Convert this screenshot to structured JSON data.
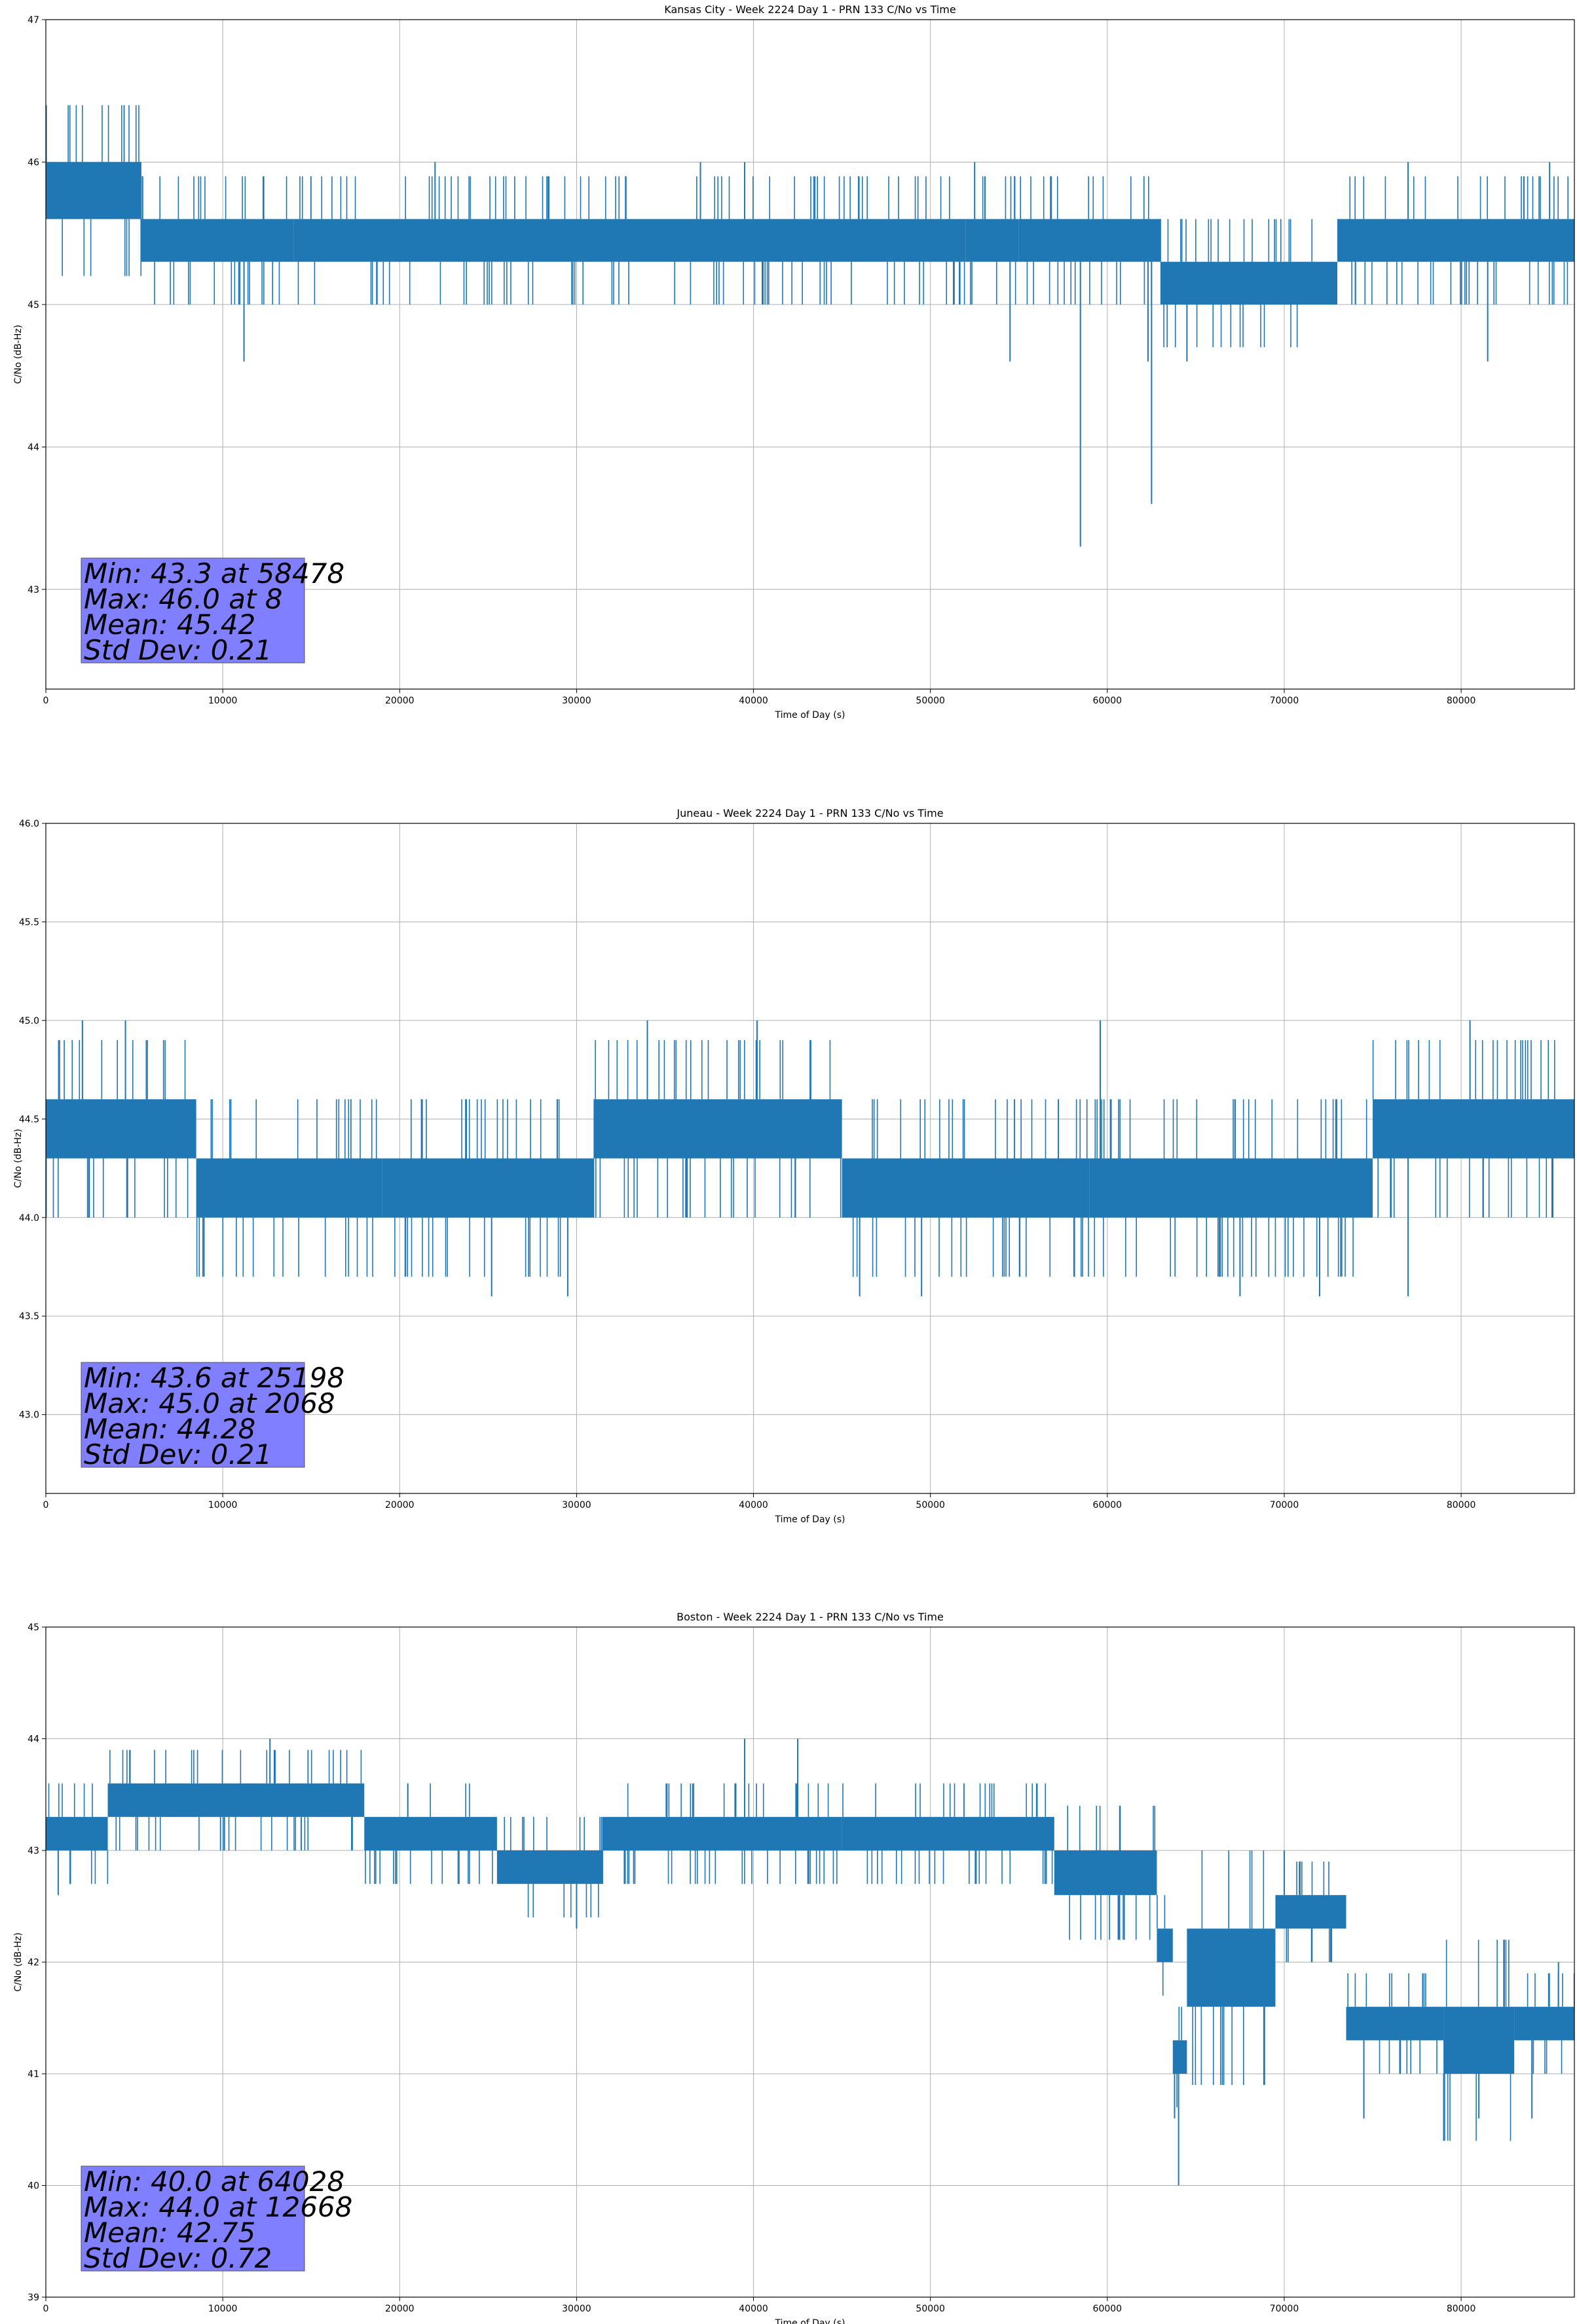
{
  "colors": {
    "series": "#1f77b4",
    "grid": "#b0b0b0",
    "stats_box": "#7f7fff"
  },
  "chart_data": [
    {
      "type": "line",
      "title": "Kansas City - Week 2224 Day 1 - PRN 133 C/No vs Time",
      "xlabel": "Time of Day (s)",
      "ylabel": "C/No (dB-Hz)",
      "xlim": [
        0,
        86400
      ],
      "ylim": [
        42.3,
        47
      ],
      "xticks": [
        0,
        10000,
        20000,
        30000,
        40000,
        50000,
        60000,
        70000,
        80000
      ],
      "yticks": [
        43,
        44,
        45,
        46,
        47
      ],
      "ytick_labels": [
        "43",
        "44",
        "45",
        "46",
        "47"
      ],
      "grid": true,
      "stats": [
        "Min: 43.3 at 58478",
        "Max: 46.0 at 8",
        "Mean: 45.42",
        "Std Dev: 0.21"
      ],
      "bands": [
        {
          "x": [
            0,
            5400
          ],
          "y": [
            45.6,
            46.0
          ]
        },
        {
          "x": [
            5400,
            14000
          ],
          "y": [
            45.3,
            45.6
          ]
        },
        {
          "x": [
            14000,
            52000
          ],
          "y": [
            45.3,
            45.6
          ]
        },
        {
          "x": [
            52000,
            55000
          ],
          "y": [
            45.3,
            45.6
          ]
        },
        {
          "x": [
            55000,
            63000
          ],
          "y": [
            45.3,
            45.6
          ]
        },
        {
          "x": [
            63000,
            73000
          ],
          "y": [
            45.0,
            45.3
          ]
        },
        {
          "x": [
            73000,
            86400
          ],
          "y": [
            45.3,
            45.6
          ]
        }
      ],
      "spikes": [
        {
          "x": 8,
          "y": 46.0
        },
        {
          "x": 11200,
          "y": 44.6
        },
        {
          "x": 22000,
          "y": 46.0
        },
        {
          "x": 37000,
          "y": 46.0
        },
        {
          "x": 39500,
          "y": 46.0
        },
        {
          "x": 52500,
          "y": 46.0
        },
        {
          "x": 54500,
          "y": 44.6
        },
        {
          "x": 58478,
          "y": 43.3
        },
        {
          "x": 62500,
          "y": 43.6
        },
        {
          "x": 62300,
          "y": 44.6
        },
        {
          "x": 64500,
          "y": 44.6
        },
        {
          "x": 77000,
          "y": 46.0
        },
        {
          "x": 81500,
          "y": 44.6
        },
        {
          "x": 85000,
          "y": 46.0
        }
      ]
    },
    {
      "type": "line",
      "title": "Juneau - Week 2224 Day 1 - PRN 133 C/No vs Time",
      "xlabel": "Time of Day (s)",
      "ylabel": "C/No (dB-Hz)",
      "xlim": [
        0,
        86400
      ],
      "ylim": [
        42.6,
        46
      ],
      "xticks": [
        0,
        10000,
        20000,
        30000,
        40000,
        50000,
        60000,
        70000,
        80000
      ],
      "yticks": [
        43.0,
        43.5,
        44.0,
        44.5,
        45.0,
        45.5,
        46.0
      ],
      "ytick_labels": [
        "43.0",
        "43.5",
        "44.0",
        "44.5",
        "45.0",
        "45.5",
        "46.0"
      ],
      "grid": true,
      "stats": [
        "Min: 43.6 at 25198",
        "Max: 45.0 at 2068",
        "Mean: 44.28",
        "Std Dev: 0.21"
      ],
      "bands": [
        {
          "x": [
            0,
            8500
          ],
          "y": [
            44.3,
            44.6
          ]
        },
        {
          "x": [
            8500,
            19000
          ],
          "y": [
            44.0,
            44.3
          ]
        },
        {
          "x": [
            19000,
            31000
          ],
          "y": [
            44.0,
            44.3
          ]
        },
        {
          "x": [
            31000,
            45000
          ],
          "y": [
            44.3,
            44.6
          ]
        },
        {
          "x": [
            45000,
            59000
          ],
          "y": [
            44.0,
            44.3
          ]
        },
        {
          "x": [
            59000,
            75000
          ],
          "y": [
            44.0,
            44.3
          ]
        },
        {
          "x": [
            75000,
            86400
          ],
          "y": [
            44.3,
            44.6
          ]
        }
      ],
      "spikes": [
        {
          "x": 2068,
          "y": 45.0
        },
        {
          "x": 4500,
          "y": 45.0
        },
        {
          "x": 25198,
          "y": 43.6
        },
        {
          "x": 29500,
          "y": 43.6
        },
        {
          "x": 34000,
          "y": 45.0
        },
        {
          "x": 40200,
          "y": 45.0
        },
        {
          "x": 46000,
          "y": 43.6
        },
        {
          "x": 49500,
          "y": 43.6
        },
        {
          "x": 59600,
          "y": 45.0
        },
        {
          "x": 67500,
          "y": 43.6
        },
        {
          "x": 72000,
          "y": 43.6
        },
        {
          "x": 77000,
          "y": 43.6
        },
        {
          "x": 80500,
          "y": 45.0
        }
      ]
    },
    {
      "type": "line",
      "title": "Boston - Week 2224 Day 1 - PRN 133 C/No vs Time",
      "xlabel": "Time of Day (s)",
      "ylabel": "C/No (dB-Hz)",
      "xlim": [
        0,
        86400
      ],
      "ylim": [
        39,
        45
      ],
      "xticks": [
        0,
        10000,
        20000,
        30000,
        40000,
        50000,
        60000,
        70000,
        80000
      ],
      "yticks": [
        39,
        40,
        41,
        42,
        43,
        44,
        45
      ],
      "ytick_labels": [
        "39",
        "40",
        "41",
        "42",
        "43",
        "44",
        "45"
      ],
      "grid": true,
      "stats": [
        "Min: 40.0 at 64028",
        "Max: 44.0 at 12668",
        "Mean: 42.75",
        "Std Dev: 0.72"
      ],
      "bands": [
        {
          "x": [
            0,
            3500
          ],
          "y": [
            43.0,
            43.3
          ]
        },
        {
          "x": [
            3500,
            18000
          ],
          "y": [
            43.3,
            43.6
          ]
        },
        {
          "x": [
            18000,
            25500
          ],
          "y": [
            43.0,
            43.3
          ]
        },
        {
          "x": [
            25500,
            31500
          ],
          "y": [
            42.7,
            43.0
          ]
        },
        {
          "x": [
            31500,
            45000
          ],
          "y": [
            43.0,
            43.3
          ]
        },
        {
          "x": [
            45000,
            57000
          ],
          "y": [
            43.0,
            43.3
          ]
        },
        {
          "x": [
            57000,
            62800
          ],
          "y": [
            42.6,
            43.0
          ]
        },
        {
          "x": [
            62800,
            63700
          ],
          "y": [
            42.0,
            42.3
          ]
        },
        {
          "x": [
            63700,
            64500
          ],
          "y": [
            41.0,
            41.3
          ]
        },
        {
          "x": [
            64500,
            69500
          ],
          "y": [
            41.6,
            42.3
          ]
        },
        {
          "x": [
            69500,
            73500
          ],
          "y": [
            42.3,
            42.6
          ]
        },
        {
          "x": [
            73500,
            79000
          ],
          "y": [
            41.3,
            41.6
          ]
        },
        {
          "x": [
            79000,
            83000
          ],
          "y": [
            41.0,
            41.6
          ]
        },
        {
          "x": [
            83000,
            86400
          ],
          "y": [
            41.3,
            41.6
          ]
        }
      ],
      "spikes": [
        {
          "x": 700,
          "y": 42.6
        },
        {
          "x": 12668,
          "y": 44.0
        },
        {
          "x": 30000,
          "y": 42.3
        },
        {
          "x": 39500,
          "y": 44.0
        },
        {
          "x": 42500,
          "y": 44.0
        },
        {
          "x": 64028,
          "y": 40.0
        },
        {
          "x": 63800,
          "y": 40.6
        },
        {
          "x": 70000,
          "y": 43.0
        },
        {
          "x": 74500,
          "y": 40.6
        },
        {
          "x": 81000,
          "y": 40.6
        },
        {
          "x": 84000,
          "y": 40.6
        },
        {
          "x": 85500,
          "y": 42.0
        }
      ]
    }
  ]
}
